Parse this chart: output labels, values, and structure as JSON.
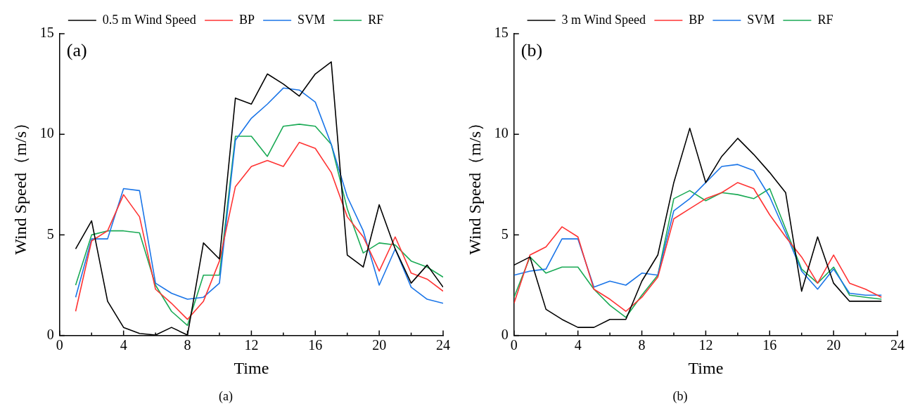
{
  "chart_data": [
    {
      "type": "line",
      "title": "(a)",
      "annotations": [
        "(a)"
      ],
      "xlabel": "Time",
      "ylabel": "Wind Speed（m/s）",
      "x": [
        1,
        2,
        3,
        4,
        5,
        6,
        7,
        8,
        9,
        10,
        11,
        12,
        13,
        14,
        15,
        16,
        17,
        18,
        19,
        20,
        21,
        22,
        23,
        24
      ],
      "series": [
        {
          "name": "0.5 m Wind Speed",
          "color": "#000000",
          "values": [
            4.3,
            5.7,
            1.7,
            0.4,
            0.1,
            0.02,
            0.4,
            0.02,
            4.6,
            3.8,
            11.8,
            11.5,
            13.0,
            12.5,
            11.9,
            13.0,
            13.6,
            4.0,
            3.4,
            6.5,
            4.3,
            2.6,
            3.5,
            2.4
          ]
        },
        {
          "name": "BP",
          "color": "#ff3333",
          "values": [
            1.2,
            4.7,
            5.2,
            7.0,
            5.9,
            2.3,
            1.6,
            0.8,
            1.7,
            3.7,
            7.4,
            8.4,
            8.7,
            8.4,
            9.6,
            9.3,
            8.1,
            5.9,
            4.9,
            3.2,
            4.9,
            3.1,
            2.8,
            2.2
          ]
        },
        {
          "name": "SVM",
          "color": "#1a75e8",
          "values": [
            1.9,
            4.8,
            4.8,
            7.3,
            7.2,
            2.6,
            2.1,
            1.8,
            1.9,
            2.6,
            9.7,
            10.8,
            11.5,
            12.3,
            12.2,
            11.6,
            9.5,
            6.9,
            5.2,
            2.5,
            4.3,
            2.4,
            1.8,
            1.6
          ]
        },
        {
          "name": "RF",
          "color": "#1aaa55",
          "values": [
            2.5,
            5.0,
            5.2,
            5.2,
            5.1,
            2.5,
            1.2,
            0.5,
            3.0,
            3.0,
            9.9,
            9.9,
            8.9,
            10.4,
            10.5,
            10.4,
            9.5,
            6.3,
            4.1,
            4.6,
            4.5,
            3.7,
            3.4,
            2.9
          ]
        }
      ],
      "xlim": [
        0,
        24
      ],
      "xticks": [
        0,
        {
          "value": 2,
          "label": null
        },
        4,
        {
          "value": 6,
          "label": null
        },
        8,
        {
          "value": 10,
          "label": null
        },
        12,
        {
          "value": 14,
          "label": null
        },
        16,
        {
          "value": 18,
          "label": null
        },
        20,
        {
          "value": 22,
          "label": null
        },
        24
      ],
      "ylim": [
        0,
        15
      ],
      "yticks": [
        0,
        5,
        10,
        15
      ],
      "grid": false,
      "legend": "top",
      "marker": "none",
      "line_style": "solid"
    },
    {
      "type": "line",
      "title": "(b)",
      "annotations": [
        "(b)"
      ],
      "xlabel": "Time",
      "ylabel": "Wind Speed（m/s）",
      "x": [
        0,
        1,
        2,
        3,
        4,
        5,
        6,
        7,
        8,
        9,
        10,
        11,
        12,
        13,
        14,
        15,
        16,
        17,
        18,
        19,
        20,
        21,
        22,
        23
      ],
      "series": [
        {
          "name": "3 m Wind Speed",
          "color": "#000000",
          "values": [
            3.5,
            3.9,
            1.3,
            0.8,
            0.4,
            0.4,
            0.8,
            0.8,
            2.7,
            4.0,
            7.6,
            10.3,
            7.6,
            8.9,
            9.8,
            9.0,
            8.1,
            7.1,
            2.2,
            4.9,
            2.6,
            1.7,
            1.7,
            1.7
          ]
        },
        {
          "name": "BP",
          "color": "#ff3333",
          "values": [
            1.6,
            4.0,
            4.4,
            5.4,
            4.9,
            2.3,
            1.8,
            1.2,
            1.9,
            2.9,
            5.8,
            6.3,
            6.8,
            7.1,
            7.6,
            7.3,
            6.0,
            4.9,
            3.9,
            2.6,
            4.0,
            2.6,
            2.3,
            1.9
          ]
        },
        {
          "name": "SVM",
          "color": "#1a75e8",
          "values": [
            3.0,
            3.2,
            3.3,
            4.8,
            4.8,
            2.4,
            2.7,
            2.5,
            3.1,
            3.0,
            6.2,
            6.8,
            7.6,
            8.4,
            8.5,
            8.2,
            6.9,
            5.1,
            3.2,
            2.3,
            3.3,
            2.1,
            2.0,
            2.0
          ]
        },
        {
          "name": "RF",
          "color": "#1aaa55",
          "values": [
            1.9,
            3.9,
            3.1,
            3.4,
            3.4,
            2.3,
            1.5,
            0.9,
            2.0,
            3.0,
            6.8,
            7.2,
            6.7,
            7.1,
            7.0,
            6.8,
            7.3,
            5.3,
            3.3,
            2.6,
            3.4,
            2.0,
            1.9,
            1.8
          ]
        }
      ],
      "xlim": [
        0,
        24
      ],
      "xticks": [
        0,
        {
          "value": 2,
          "label": null
        },
        4,
        {
          "value": 6,
          "label": null
        },
        8,
        {
          "value": 10,
          "label": null
        },
        12,
        {
          "value": 14,
          "label": null
        },
        16,
        {
          "value": 18,
          "label": null
        },
        20,
        {
          "value": 22,
          "label": null
        },
        24
      ],
      "ylim": [
        0,
        15
      ],
      "yticks": [
        0,
        5,
        10,
        15
      ],
      "grid": false,
      "legend": "top",
      "marker": "none",
      "line_style": "solid"
    }
  ]
}
